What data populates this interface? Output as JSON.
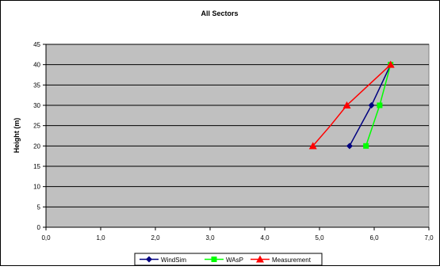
{
  "chart_data": {
    "type": "line",
    "title": "All Sectors",
    "xlabel": "",
    "ylabel": "Height (m)",
    "xlim": [
      0,
      7
    ],
    "ylim": [
      0,
      45
    ],
    "xticks": [
      "0,0",
      "1,0",
      "2,0",
      "3,0",
      "4,0",
      "5,0",
      "6,0",
      "7,0"
    ],
    "yticks": [
      "0",
      "5",
      "10",
      "15",
      "20",
      "25",
      "30",
      "35",
      "40",
      "45"
    ],
    "grid": "horizontal",
    "legend_position": "bottom",
    "series": [
      {
        "name": "WindSim",
        "color": "#000080",
        "marker": "diamond",
        "points": [
          [
            5.55,
            20
          ],
          [
            5.95,
            30
          ],
          [
            6.3,
            40
          ]
        ]
      },
      {
        "name": "WAsP",
        "color": "#00ff00",
        "marker": "square",
        "points": [
          [
            5.85,
            20
          ],
          [
            6.1,
            30
          ],
          [
            6.3,
            40
          ]
        ]
      },
      {
        "name": "Measurement",
        "color": "#ff0000",
        "marker": "triangle",
        "points": [
          [
            4.88,
            20
          ],
          [
            5.2,
            25
          ],
          [
            5.5,
            30
          ],
          [
            5.9,
            35
          ],
          [
            6.3,
            40
          ]
        ]
      }
    ],
    "marker_points": {
      "Measurement": [
        [
          4.88,
          20
        ],
        [
          5.5,
          30
        ],
        [
          6.3,
          40
        ]
      ]
    }
  }
}
